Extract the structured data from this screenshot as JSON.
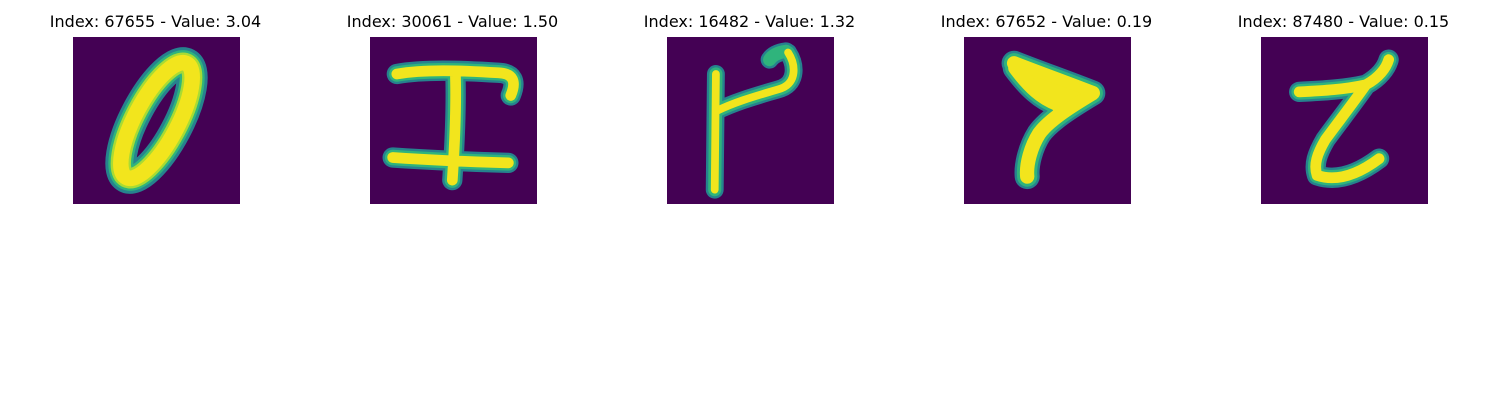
{
  "colors": {
    "background": "#440154",
    "stroke_core": "#f2e51d",
    "stroke_mid": "#a9db33",
    "stroke_edge": "#2fb47c",
    "stroke_halo": "#26828e"
  },
  "panels": [
    {
      "title": "Index: 67655 - Value: 3.04",
      "index": 67655,
      "value": 3.04,
      "glyph": "zero-ellipse"
    },
    {
      "title": "Index: 30061 - Value: 1.50",
      "index": 30061,
      "value": 1.5,
      "glyph": "i-beam"
    },
    {
      "title": "Index: 16482 - Value: 1.32",
      "index": 16482,
      "value": 1.32,
      "glyph": "hook-stroke"
    },
    {
      "title": "Index: 67652 - Value: 0.19",
      "index": 67652,
      "value": 0.19,
      "glyph": "arrow-stroke"
    },
    {
      "title": "Index: 87480 - Value: 0.15",
      "index": 87480,
      "value": 0.15,
      "glyph": "z-stroke"
    }
  ]
}
